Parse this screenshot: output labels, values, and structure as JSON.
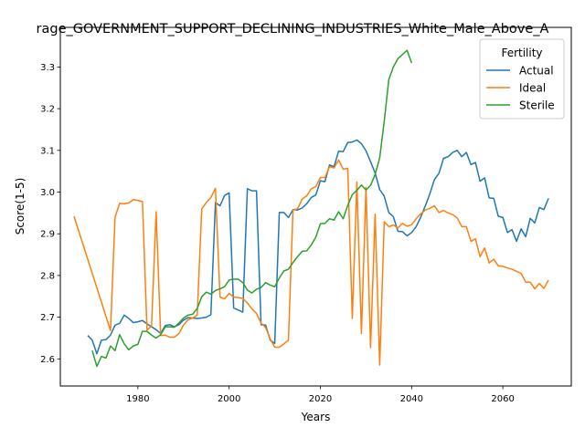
{
  "chart_data": {
    "type": "line",
    "title": "rage_GOVERNMENT_SUPPORT_DECLINING_INDUSTRIES_White_Male_Above_A",
    "xlabel": "Years",
    "ylabel": "Score(1-5)",
    "xlim": [
      1963,
      2075
    ],
    "ylim": [
      2.535,
      3.395
    ],
    "xticks": [
      1980,
      2000,
      2020,
      2040,
      2060
    ],
    "yticks": [
      2.6,
      2.7,
      2.8,
      2.9,
      3.0,
      3.1,
      3.2,
      3.3
    ],
    "ytick_labels": [
      "2.6",
      "2.7",
      "2.8",
      "2.9",
      "3.0",
      "3.1",
      "3.2",
      "3.3"
    ],
    "grid": false,
    "legend": {
      "title": "Fertility",
      "placement": "top-right"
    },
    "series": [
      {
        "name": "Actual",
        "color": "#1f77b4",
        "points": [
          [
            1969,
            2.656
          ],
          [
            1970,
            2.645
          ],
          [
            1971,
            2.612
          ],
          [
            1972,
            2.645
          ],
          [
            1973,
            2.646
          ],
          [
            1974,
            2.657
          ],
          [
            1975,
            2.681
          ],
          [
            1976,
            2.685
          ],
          [
            1977,
            2.705
          ],
          [
            1978,
            2.697
          ],
          [
            1979,
            2.687
          ],
          [
            1980,
            2.689
          ],
          [
            1981,
            2.692
          ],
          [
            1982,
            2.684
          ],
          [
            1983,
            2.677
          ],
          [
            1984,
            2.67
          ],
          [
            1985,
            2.661
          ],
          [
            1986,
            2.68
          ],
          [
            1987,
            2.682
          ],
          [
            1988,
            2.677
          ],
          [
            1989,
            2.682
          ],
          [
            1990,
            2.693
          ],
          [
            1991,
            2.699
          ],
          [
            1992,
            2.698
          ],
          [
            1993,
            2.697
          ],
          [
            1994,
            2.698
          ],
          [
            1995,
            2.7
          ],
          [
            1996,
            2.706
          ],
          [
            1997,
            2.975
          ],
          [
            1998,
            2.967
          ],
          [
            1999,
            2.992
          ],
          [
            2000,
            2.998
          ],
          [
            2001,
            2.722
          ],
          [
            2002,
            2.717
          ],
          [
            2003,
            2.712
          ],
          [
            2004,
            3.008
          ],
          [
            2005,
            3.003
          ],
          [
            2006,
            3.003
          ],
          [
            2007,
            2.682
          ],
          [
            2008,
            2.681
          ],
          [
            2009,
            2.645
          ],
          [
            2010,
            2.637
          ],
          [
            2011,
            2.951
          ],
          [
            2012,
            2.951
          ],
          [
            2013,
            2.939
          ],
          [
            2014,
            2.958
          ],
          [
            2015,
            2.957
          ],
          [
            2016,
            2.962
          ],
          [
            2017,
            2.972
          ],
          [
            2018,
            2.987
          ],
          [
            2019,
            2.993
          ],
          [
            2020,
            3.027
          ],
          [
            2021,
            3.025
          ],
          [
            2022,
            3.065
          ],
          [
            2023,
            3.061
          ],
          [
            2024,
            3.098
          ],
          [
            2025,
            3.097
          ],
          [
            2026,
            3.119
          ],
          [
            2027,
            3.12
          ],
          [
            2028,
            3.125
          ],
          [
            2029,
            3.116
          ],
          [
            2030,
            3.099
          ],
          [
            2031,
            3.073
          ],
          [
            2032,
            3.046
          ],
          [
            2033,
            3.006
          ],
          [
            2034,
            2.99
          ],
          [
            2035,
            2.951
          ],
          [
            2036,
            2.941
          ],
          [
            2037,
            2.906
          ],
          [
            2038,
            2.905
          ],
          [
            2039,
            2.895
          ],
          [
            2040,
            2.903
          ],
          [
            2041,
            2.917
          ],
          [
            2042,
            2.94
          ],
          [
            2043,
            2.967
          ],
          [
            2044,
            2.996
          ],
          [
            2045,
            3.03
          ],
          [
            2046,
            3.045
          ],
          [
            2047,
            3.081
          ],
          [
            2048,
            3.085
          ],
          [
            2049,
            3.095
          ],
          [
            2050,
            3.1
          ],
          [
            2051,
            3.085
          ],
          [
            2052,
            3.095
          ],
          [
            2053,
            3.066
          ],
          [
            2054,
            3.071
          ],
          [
            2055,
            3.026
          ],
          [
            2056,
            3.034
          ],
          [
            2057,
            2.986
          ],
          [
            2058,
            2.985
          ],
          [
            2059,
            2.942
          ],
          [
            2060,
            2.939
          ],
          [
            2061,
            2.903
          ],
          [
            2062,
            2.91
          ],
          [
            2063,
            2.882
          ],
          [
            2064,
            2.912
          ],
          [
            2065,
            2.893
          ],
          [
            2066,
            2.937
          ],
          [
            2067,
            2.926
          ],
          [
            2068,
            2.963
          ],
          [
            2069,
            2.958
          ],
          [
            2070,
            2.985
          ]
        ]
      },
      {
        "name": "Ideal",
        "color": "#ff7f0e",
        "points": [
          [
            1966,
            2.942
          ],
          [
            1974,
            2.668
          ],
          [
            1975,
            2.94
          ],
          [
            1976,
            2.973
          ],
          [
            1977,
            2.972
          ],
          [
            1978,
            2.974
          ],
          [
            1979,
            2.982
          ],
          [
            1980,
            2.98
          ],
          [
            1981,
            2.977
          ],
          [
            1982,
            2.669
          ],
          [
            1983,
            2.679
          ],
          [
            1984,
            2.953
          ],
          [
            1985,
            2.656
          ],
          [
            1986,
            2.657
          ],
          [
            1987,
            2.652
          ],
          [
            1988,
            2.652
          ],
          [
            1989,
            2.661
          ],
          [
            1990,
            2.681
          ],
          [
            1991,
            2.694
          ],
          [
            1992,
            2.698
          ],
          [
            1993,
            2.705
          ],
          [
            1994,
            2.96
          ],
          [
            1995,
            2.975
          ],
          [
            1996,
            2.987
          ],
          [
            1997,
            3.009
          ],
          [
            1998,
            2.748
          ],
          [
            1999,
            2.744
          ],
          [
            2000,
            2.757
          ],
          [
            2001,
            2.748
          ],
          [
            2002,
            2.747
          ],
          [
            2003,
            2.745
          ],
          [
            2004,
            2.734
          ],
          [
            2005,
            2.72
          ],
          [
            2006,
            2.709
          ],
          [
            2007,
            2.686
          ],
          [
            2008,
            2.675
          ],
          [
            2009,
            2.648
          ],
          [
            2010,
            2.628
          ],
          [
            2011,
            2.628
          ],
          [
            2012,
            2.636
          ],
          [
            2013,
            2.645
          ],
          [
            2014,
            2.957
          ],
          [
            2015,
            2.96
          ],
          [
            2016,
            2.983
          ],
          [
            2017,
            2.991
          ],
          [
            2018,
            3.008
          ],
          [
            2019,
            3.013
          ],
          [
            2020,
            3.035
          ],
          [
            2021,
            3.035
          ],
          [
            2022,
            3.061
          ],
          [
            2023,
            3.058
          ],
          [
            2024,
            3.077
          ],
          [
            2025,
            3.055
          ],
          [
            2026,
            3.057
          ],
          [
            2027,
            2.697
          ],
          [
            2028,
            3.024
          ],
          [
            2029,
            2.661
          ],
          [
            2030,
            3.011
          ],
          [
            2031,
            2.627
          ],
          [
            2032,
            2.947
          ],
          [
            2033,
            2.585
          ],
          [
            2034,
            2.929
          ],
          [
            2035,
            2.917
          ],
          [
            2036,
            2.921
          ],
          [
            2037,
            2.914
          ],
          [
            2038,
            2.925
          ],
          [
            2039,
            2.918
          ],
          [
            2040,
            2.922
          ],
          [
            2041,
            2.936
          ],
          [
            2042,
            2.948
          ],
          [
            2043,
            2.957
          ],
          [
            2044,
            2.961
          ],
          [
            2045,
            2.967
          ],
          [
            2046,
            2.951
          ],
          [
            2047,
            2.956
          ],
          [
            2048,
            2.95
          ],
          [
            2049,
            2.946
          ],
          [
            2050,
            2.938
          ],
          [
            2051,
            2.917
          ],
          [
            2052,
            2.917
          ],
          [
            2053,
            2.882
          ],
          [
            2054,
            2.888
          ],
          [
            2055,
            2.845
          ],
          [
            2056,
            2.866
          ],
          [
            2057,
            2.83
          ],
          [
            2058,
            2.839
          ],
          [
            2059,
            2.823
          ],
          [
            2060,
            2.822
          ],
          [
            2061,
            2.818
          ],
          [
            2062,
            2.815
          ],
          [
            2063,
            2.81
          ],
          [
            2064,
            2.805
          ],
          [
            2065,
            2.784
          ],
          [
            2066,
            2.784
          ],
          [
            2067,
            2.768
          ],
          [
            2068,
            2.781
          ],
          [
            2069,
            2.769
          ],
          [
            2070,
            2.789
          ]
        ]
      },
      {
        "name": "Sterile",
        "color": "#2ca02c",
        "points": [
          [
            1970,
            2.62
          ],
          [
            1971,
            2.582
          ],
          [
            1972,
            2.606
          ],
          [
            1973,
            2.602
          ],
          [
            1974,
            2.631
          ],
          [
            1975,
            2.62
          ],
          [
            1976,
            2.658
          ],
          [
            1977,
            2.636
          ],
          [
            1978,
            2.622
          ],
          [
            1979,
            2.631
          ],
          [
            1980,
            2.635
          ],
          [
            1981,
            2.666
          ],
          [
            1982,
            2.666
          ],
          [
            1983,
            2.657
          ],
          [
            1984,
            2.65
          ],
          [
            1985,
            2.658
          ],
          [
            1986,
            2.677
          ],
          [
            1987,
            2.677
          ],
          [
            1988,
            2.676
          ],
          [
            1989,
            2.686
          ],
          [
            1990,
            2.698
          ],
          [
            1991,
            2.705
          ],
          [
            1992,
            2.707
          ],
          [
            1993,
            2.721
          ],
          [
            1994,
            2.749
          ],
          [
            1995,
            2.76
          ],
          [
            1996,
            2.755
          ],
          [
            1997,
            2.764
          ],
          [
            1998,
            2.768
          ],
          [
            1999,
            2.773
          ],
          [
            2000,
            2.789
          ],
          [
            2001,
            2.791
          ],
          [
            2002,
            2.791
          ],
          [
            2003,
            2.783
          ],
          [
            2004,
            2.765
          ],
          [
            2005,
            2.758
          ],
          [
            2006,
            2.767
          ],
          [
            2007,
            2.771
          ],
          [
            2008,
            2.783
          ],
          [
            2009,
            2.777
          ],
          [
            2010,
            2.773
          ],
          [
            2011,
            2.794
          ],
          [
            2012,
            2.811
          ],
          [
            2013,
            2.815
          ],
          [
            2014,
            2.831
          ],
          [
            2015,
            2.845
          ],
          [
            2016,
            2.858
          ],
          [
            2017,
            2.859
          ],
          [
            2018,
            2.873
          ],
          [
            2019,
            2.892
          ],
          [
            2020,
            2.924
          ],
          [
            2021,
            2.925
          ],
          [
            2022,
            2.936
          ],
          [
            2023,
            2.933
          ],
          [
            2024,
            2.953
          ],
          [
            2025,
            2.936
          ],
          [
            2026,
            2.968
          ],
          [
            2027,
            2.994
          ],
          [
            2028,
            3.004
          ],
          [
            2029,
            3.017
          ],
          [
            2030,
            3.005
          ],
          [
            2031,
            3.016
          ],
          [
            2032,
            3.042
          ],
          [
            2033,
            3.082
          ],
          [
            2034,
            3.17
          ],
          [
            2035,
            3.27
          ],
          [
            2036,
            3.3
          ],
          [
            2037,
            3.32
          ],
          [
            2038,
            3.33
          ],
          [
            2039,
            3.34
          ],
          [
            2040,
            3.31
          ]
        ]
      }
    ]
  }
}
